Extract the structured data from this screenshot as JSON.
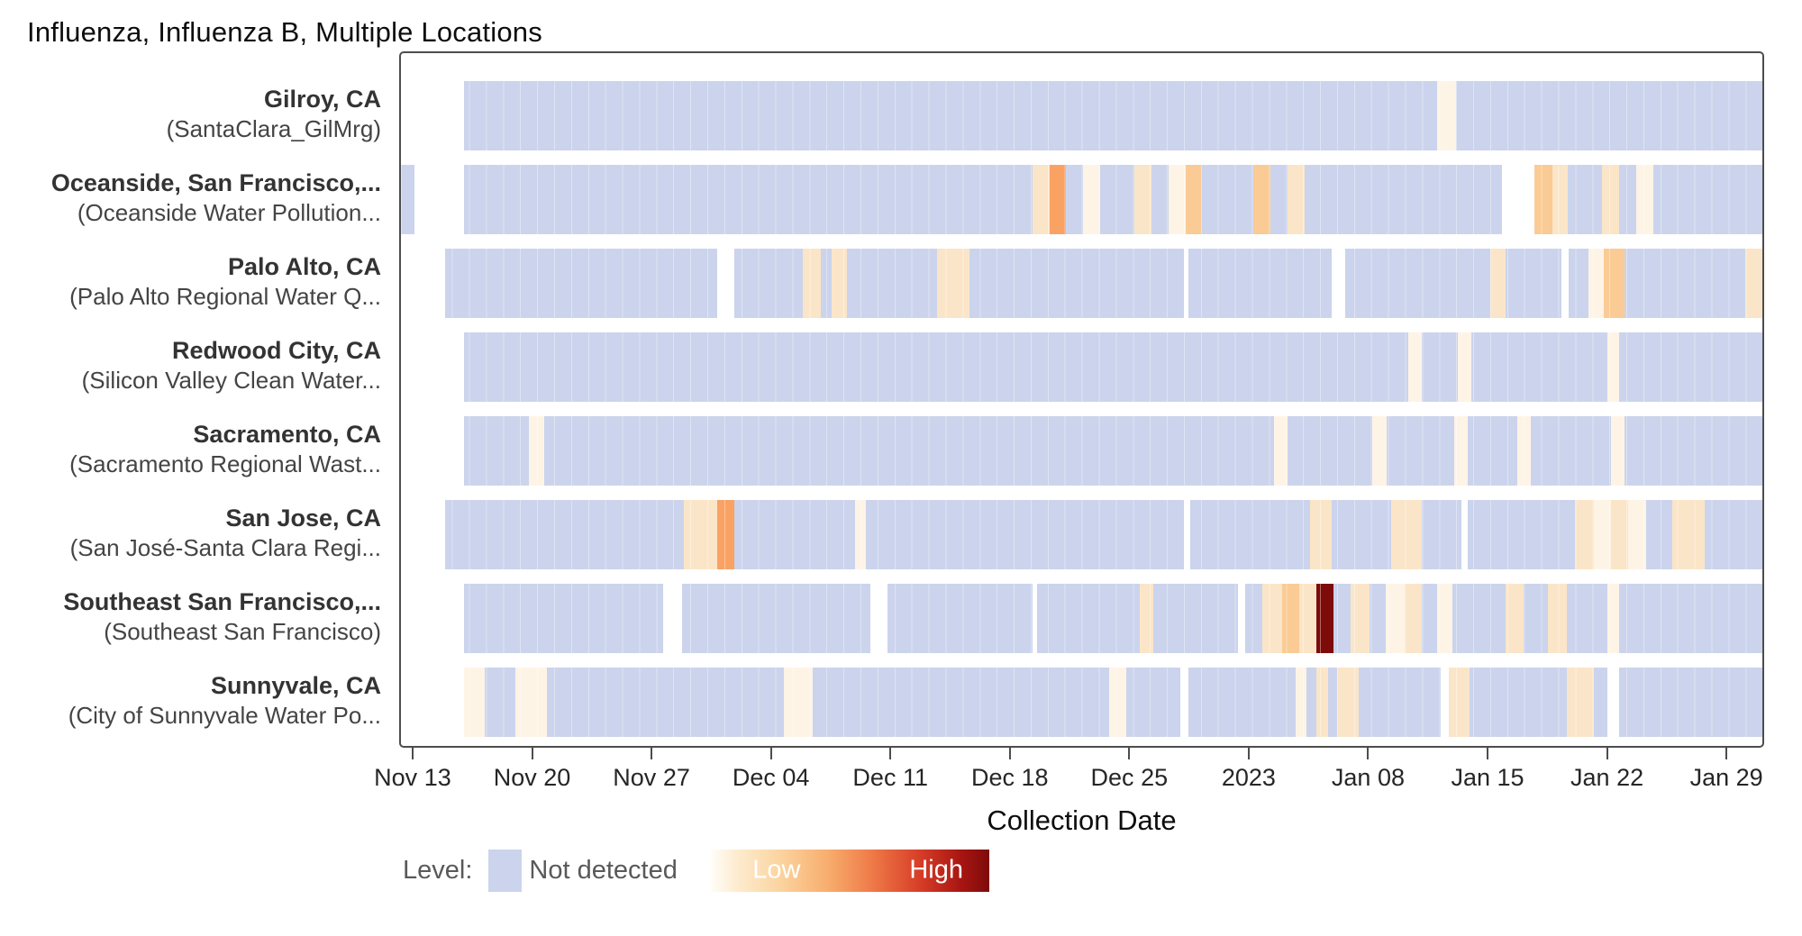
{
  "title": "Influenza, Influenza B, Multiple Locations",
  "x_axis": {
    "label": "Collection Date",
    "ticks": [
      "Nov 13",
      "Nov 20",
      "Nov 27",
      "Dec 04",
      "Dec 11",
      "Dec 18",
      "Dec 25",
      "2023",
      "Jan 08",
      "Jan 15",
      "Jan 22",
      "Jan 29"
    ],
    "tick_days": [
      0.79,
      7.79,
      14.79,
      21.79,
      28.79,
      35.79,
      42.79,
      49.79,
      56.79,
      63.79,
      70.79,
      77.79
    ]
  },
  "legend": {
    "label": "Level:",
    "not_detected": "Not detected",
    "low": "Low",
    "high": "High"
  },
  "colors": {
    "nd": "#CBD4EC",
    "no_data": "#FFFFFF",
    "L0": "#FEF4E6",
    "L1": "#FBE5C8",
    "L2": "#FACB95",
    "L3": "#F9A264",
    "high": "#7D0B0A",
    "panel_border": "#4d4d4d"
  },
  "chart_data": {
    "type": "heatmap",
    "x_range_days": 80,
    "x_start": "Nov 12",
    "x_end": "Jan 31",
    "level_key": {
      "nd": "Not detected",
      "no_data": "no sample",
      "L0": "very low",
      "L1": "low",
      "L2": "medium-low",
      "L3": "medium",
      "high": "High"
    },
    "rows": [
      {
        "location": "Gilroy, CA",
        "site": "(SantaClara_GilMrg)",
        "segments": [
          {
            "d": 3.7,
            "c": "no_data"
          },
          {
            "d": 57.2,
            "c": "nd"
          },
          {
            "d": 1.1,
            "c": "L0"
          },
          {
            "d": 18.0,
            "c": "nd"
          }
        ]
      },
      {
        "location": "Oceanside, San Francisco,...",
        "site": "(Oceanside Water Pollution...",
        "segments": [
          {
            "d": 0.8,
            "c": "nd"
          },
          {
            "d": 2.9,
            "c": "no_data"
          },
          {
            "d": 33.4,
            "c": "nd"
          },
          {
            "d": 1.0,
            "c": "L1"
          },
          {
            "d": 1.0,
            "c": "L3"
          },
          {
            "d": 1.0,
            "c": "nd"
          },
          {
            "d": 1.0,
            "c": "L0"
          },
          {
            "d": 2.0,
            "c": "nd"
          },
          {
            "d": 1.0,
            "c": "L1"
          },
          {
            "d": 1.0,
            "c": "nd"
          },
          {
            "d": 1.0,
            "c": "L0"
          },
          {
            "d": 1.0,
            "c": "L2"
          },
          {
            "d": 3.0,
            "c": "nd"
          },
          {
            "d": 1.0,
            "c": "L2"
          },
          {
            "d": 1.0,
            "c": "nd"
          },
          {
            "d": 1.0,
            "c": "L1"
          },
          {
            "d": 11.6,
            "c": "nd"
          },
          {
            "d": 1.9,
            "c": "no_data"
          },
          {
            "d": 1.1,
            "c": "L2"
          },
          {
            "d": 0.9,
            "c": "L1"
          },
          {
            "d": 2.0,
            "c": "nd"
          },
          {
            "d": 1.0,
            "c": "L1"
          },
          {
            "d": 1.0,
            "c": "nd"
          },
          {
            "d": 1.0,
            "c": "L0"
          },
          {
            "d": 6.4,
            "c": "nd"
          }
        ]
      },
      {
        "location": "Palo Alto, CA",
        "site": "(Palo Alto Regional Water Q...",
        "segments": [
          {
            "d": 2.6,
            "c": "no_data"
          },
          {
            "d": 16.0,
            "c": "nd"
          },
          {
            "d": 1.0,
            "c": "no_data"
          },
          {
            "d": 4.0,
            "c": "nd"
          },
          {
            "d": 1.1,
            "c": "L1"
          },
          {
            "d": 0.6,
            "c": "nd"
          },
          {
            "d": 0.9,
            "c": "L1"
          },
          {
            "d": 5.3,
            "c": "nd"
          },
          {
            "d": 1.9,
            "c": "L1"
          },
          {
            "d": 12.6,
            "c": "nd"
          },
          {
            "d": 0.3,
            "c": "no_data"
          },
          {
            "d": 8.4,
            "c": "nd"
          },
          {
            "d": 0.8,
            "c": "no_data"
          },
          {
            "d": 8.5,
            "c": "nd"
          },
          {
            "d": 0.9,
            "c": "L1"
          },
          {
            "d": 3.3,
            "c": "nd"
          },
          {
            "d": 0.4,
            "c": "no_data"
          },
          {
            "d": 1.2,
            "c": "nd"
          },
          {
            "d": 0.9,
            "c": "L0"
          },
          {
            "d": 1.2,
            "c": "L2"
          },
          {
            "d": 7.1,
            "c": "nd"
          },
          {
            "d": 1.0,
            "c": "L1"
          }
        ]
      },
      {
        "location": "Redwood City, CA",
        "site": "(Silicon Valley Clean Water...",
        "segments": [
          {
            "d": 3.7,
            "c": "no_data"
          },
          {
            "d": 55.5,
            "c": "nd"
          },
          {
            "d": 0.8,
            "c": "L0"
          },
          {
            "d": 2.1,
            "c": "nd"
          },
          {
            "d": 0.8,
            "c": "L0"
          },
          {
            "d": 8.0,
            "c": "nd"
          },
          {
            "d": 0.7,
            "c": "L0"
          },
          {
            "d": 8.4,
            "c": "nd"
          }
        ]
      },
      {
        "location": "Sacramento, CA",
        "site": "(Sacramento Regional Wast...",
        "segments": [
          {
            "d": 3.7,
            "c": "no_data"
          },
          {
            "d": 3.8,
            "c": "nd"
          },
          {
            "d": 0.9,
            "c": "L0"
          },
          {
            "d": 42.9,
            "c": "nd"
          },
          {
            "d": 0.8,
            "c": "L0"
          },
          {
            "d": 5.0,
            "c": "nd"
          },
          {
            "d": 0.8,
            "c": "L0"
          },
          {
            "d": 4.0,
            "c": "nd"
          },
          {
            "d": 0.8,
            "c": "L0"
          },
          {
            "d": 2.9,
            "c": "nd"
          },
          {
            "d": 0.8,
            "c": "L0"
          },
          {
            "d": 4.7,
            "c": "nd"
          },
          {
            "d": 0.8,
            "c": "L0"
          },
          {
            "d": 8.1,
            "c": "nd"
          }
        ]
      },
      {
        "location": "San Jose, CA",
        "site": "(San José-Santa Clara Regi...",
        "segments": [
          {
            "d": 2.6,
            "c": "no_data"
          },
          {
            "d": 14.0,
            "c": "nd"
          },
          {
            "d": 2.0,
            "c": "L1"
          },
          {
            "d": 1.0,
            "c": "L3"
          },
          {
            "d": 7.1,
            "c": "nd"
          },
          {
            "d": 0.6,
            "c": "L0"
          },
          {
            "d": 18.7,
            "c": "nd"
          },
          {
            "d": 0.4,
            "c": "no_data"
          },
          {
            "d": 7.0,
            "c": "nd"
          },
          {
            "d": 1.3,
            "c": "L1"
          },
          {
            "d": 3.5,
            "c": "nd"
          },
          {
            "d": 1.8,
            "c": "L1"
          },
          {
            "d": 2.3,
            "c": "nd"
          },
          {
            "d": 0.4,
            "c": "no_data"
          },
          {
            "d": 6.3,
            "c": "nd"
          },
          {
            "d": 1.1,
            "c": "L1"
          },
          {
            "d": 1.0,
            "c": "L0"
          },
          {
            "d": 1.0,
            "c": "L1"
          },
          {
            "d": 1.1,
            "c": "L0"
          },
          {
            "d": 1.5,
            "c": "nd"
          },
          {
            "d": 1.9,
            "c": "L1"
          },
          {
            "d": 3.4,
            "c": "nd"
          }
        ]
      },
      {
        "location": "Southeast San Francisco,...",
        "site": "(Southeast San Francisco)",
        "segments": [
          {
            "d": 3.7,
            "c": "no_data"
          },
          {
            "d": 11.7,
            "c": "nd"
          },
          {
            "d": 1.1,
            "c": "no_data"
          },
          {
            "d": 11.1,
            "c": "nd"
          },
          {
            "d": 1.0,
            "c": "no_data"
          },
          {
            "d": 8.5,
            "c": "nd"
          },
          {
            "d": 0.3,
            "c": "no_data"
          },
          {
            "d": 6.0,
            "c": "nd"
          },
          {
            "d": 0.8,
            "c": "L1"
          },
          {
            "d": 5.0,
            "c": "nd"
          },
          {
            "d": 0.4,
            "c": "no_data"
          },
          {
            "d": 1.0,
            "c": "nd"
          },
          {
            "d": 1.2,
            "c": "L1"
          },
          {
            "d": 1.0,
            "c": "L2"
          },
          {
            "d": 1.0,
            "c": "L1"
          },
          {
            "d": 1.0,
            "c": "high"
          },
          {
            "d": 1.0,
            "c": "nd"
          },
          {
            "d": 1.1,
            "c": "L1"
          },
          {
            "d": 1.0,
            "c": "nd"
          },
          {
            "d": 1.1,
            "c": "L0"
          },
          {
            "d": 1.0,
            "c": "L1"
          },
          {
            "d": 0.9,
            "c": "nd"
          },
          {
            "d": 0.9,
            "c": "L0"
          },
          {
            "d": 3.1,
            "c": "nd"
          },
          {
            "d": 1.1,
            "c": "L1"
          },
          {
            "d": 1.4,
            "c": "nd"
          },
          {
            "d": 1.1,
            "c": "L1"
          },
          {
            "d": 2.4,
            "c": "nd"
          },
          {
            "d": 0.7,
            "c": "L0"
          },
          {
            "d": 8.4,
            "c": "nd"
          }
        ]
      },
      {
        "location": "Sunnyvale, CA",
        "site": "(City of Sunnyvale Water Po...",
        "segments": [
          {
            "d": 3.7,
            "c": "no_data"
          },
          {
            "d": 1.2,
            "c": "L0"
          },
          {
            "d": 1.8,
            "c": "nd"
          },
          {
            "d": 1.9,
            "c": "L0"
          },
          {
            "d": 13.9,
            "c": "nd"
          },
          {
            "d": 1.7,
            "c": "L0"
          },
          {
            "d": 17.4,
            "c": "nd"
          },
          {
            "d": 1.0,
            "c": "L0"
          },
          {
            "d": 3.2,
            "c": "nd"
          },
          {
            "d": 0.5,
            "c": "no_data"
          },
          {
            "d": 6.3,
            "c": "nd"
          },
          {
            "d": 0.6,
            "c": "L0"
          },
          {
            "d": 0.6,
            "c": "nd"
          },
          {
            "d": 0.7,
            "c": "L1"
          },
          {
            "d": 0.5,
            "c": "nd"
          },
          {
            "d": 1.3,
            "c": "L1"
          },
          {
            "d": 4.8,
            "c": "nd"
          },
          {
            "d": 0.5,
            "c": "no_data"
          },
          {
            "d": 1.2,
            "c": "L1"
          },
          {
            "d": 5.7,
            "c": "nd"
          },
          {
            "d": 1.6,
            "c": "L1"
          },
          {
            "d": 0.8,
            "c": "nd"
          },
          {
            "d": 0.7,
            "c": "no_data"
          },
          {
            "d": 8.4,
            "c": "nd"
          }
        ]
      }
    ]
  }
}
